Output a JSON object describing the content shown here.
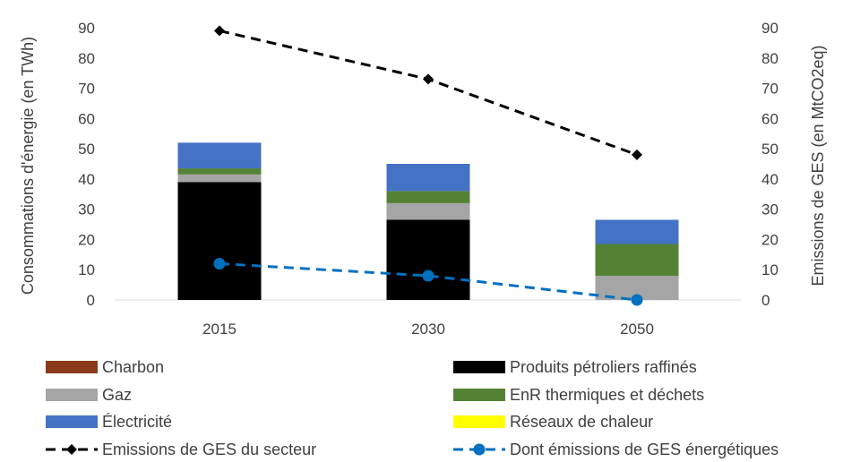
{
  "chart_data": {
    "type": "bar",
    "categories": [
      "2015",
      "2030",
      "2050"
    ],
    "ylabel": "Consommations d'énergie (en TWh)",
    "y2label": "Emissions de GES (en MtCO2eq)",
    "ylim": [
      0,
      90
    ],
    "y2lim": [
      0,
      90
    ],
    "yticks": [
      "0",
      "10",
      "20",
      "30",
      "40",
      "50",
      "60",
      "70",
      "80",
      "90"
    ],
    "y2ticks": [
      "0",
      "10",
      "20",
      "30",
      "40",
      "50",
      "60",
      "70",
      "80",
      "90"
    ],
    "grid": false,
    "legend_position": "bottom",
    "stacked_series": [
      {
        "name": "Charbon",
        "color": "#8b3a1a",
        "values": [
          0,
          0,
          0
        ]
      },
      {
        "name": "Produits pétroliers raffinés",
        "color": "#000000",
        "values": [
          39,
          26.5,
          0
        ]
      },
      {
        "name": "Gaz",
        "color": "#a5a5a5",
        "values": [
          2.5,
          5.5,
          8
        ]
      },
      {
        "name": "EnR thermiques et déchets",
        "color": "#548235",
        "values": [
          2,
          4,
          10.5
        ]
      },
      {
        "name": "Électricité",
        "color": "#4472c4",
        "values": [
          8.5,
          9,
          8
        ]
      },
      {
        "name": "Réseaux de chaleur",
        "color": "#ffff00",
        "values": [
          0,
          0,
          0
        ]
      }
    ],
    "line_series": [
      {
        "name": "Emissions de GES du secteur",
        "color": "#000000",
        "marker": "diamond",
        "dash": true,
        "axis": "right",
        "values": [
          89,
          73,
          48
        ]
      },
      {
        "name": "Dont émissions de GES énergétiques",
        "color": "#0070c0",
        "marker": "circle",
        "dash": true,
        "axis": "right",
        "values": [
          12,
          8,
          0
        ]
      }
    ],
    "legend_order": [
      "Charbon",
      "Produits pétroliers raffinés",
      "Gaz",
      "EnR thermiques et déchets",
      "Électricité",
      "Réseaux de chaleur",
      "Emissions de GES du secteur",
      "Dont émissions de GES énergétiques"
    ]
  }
}
